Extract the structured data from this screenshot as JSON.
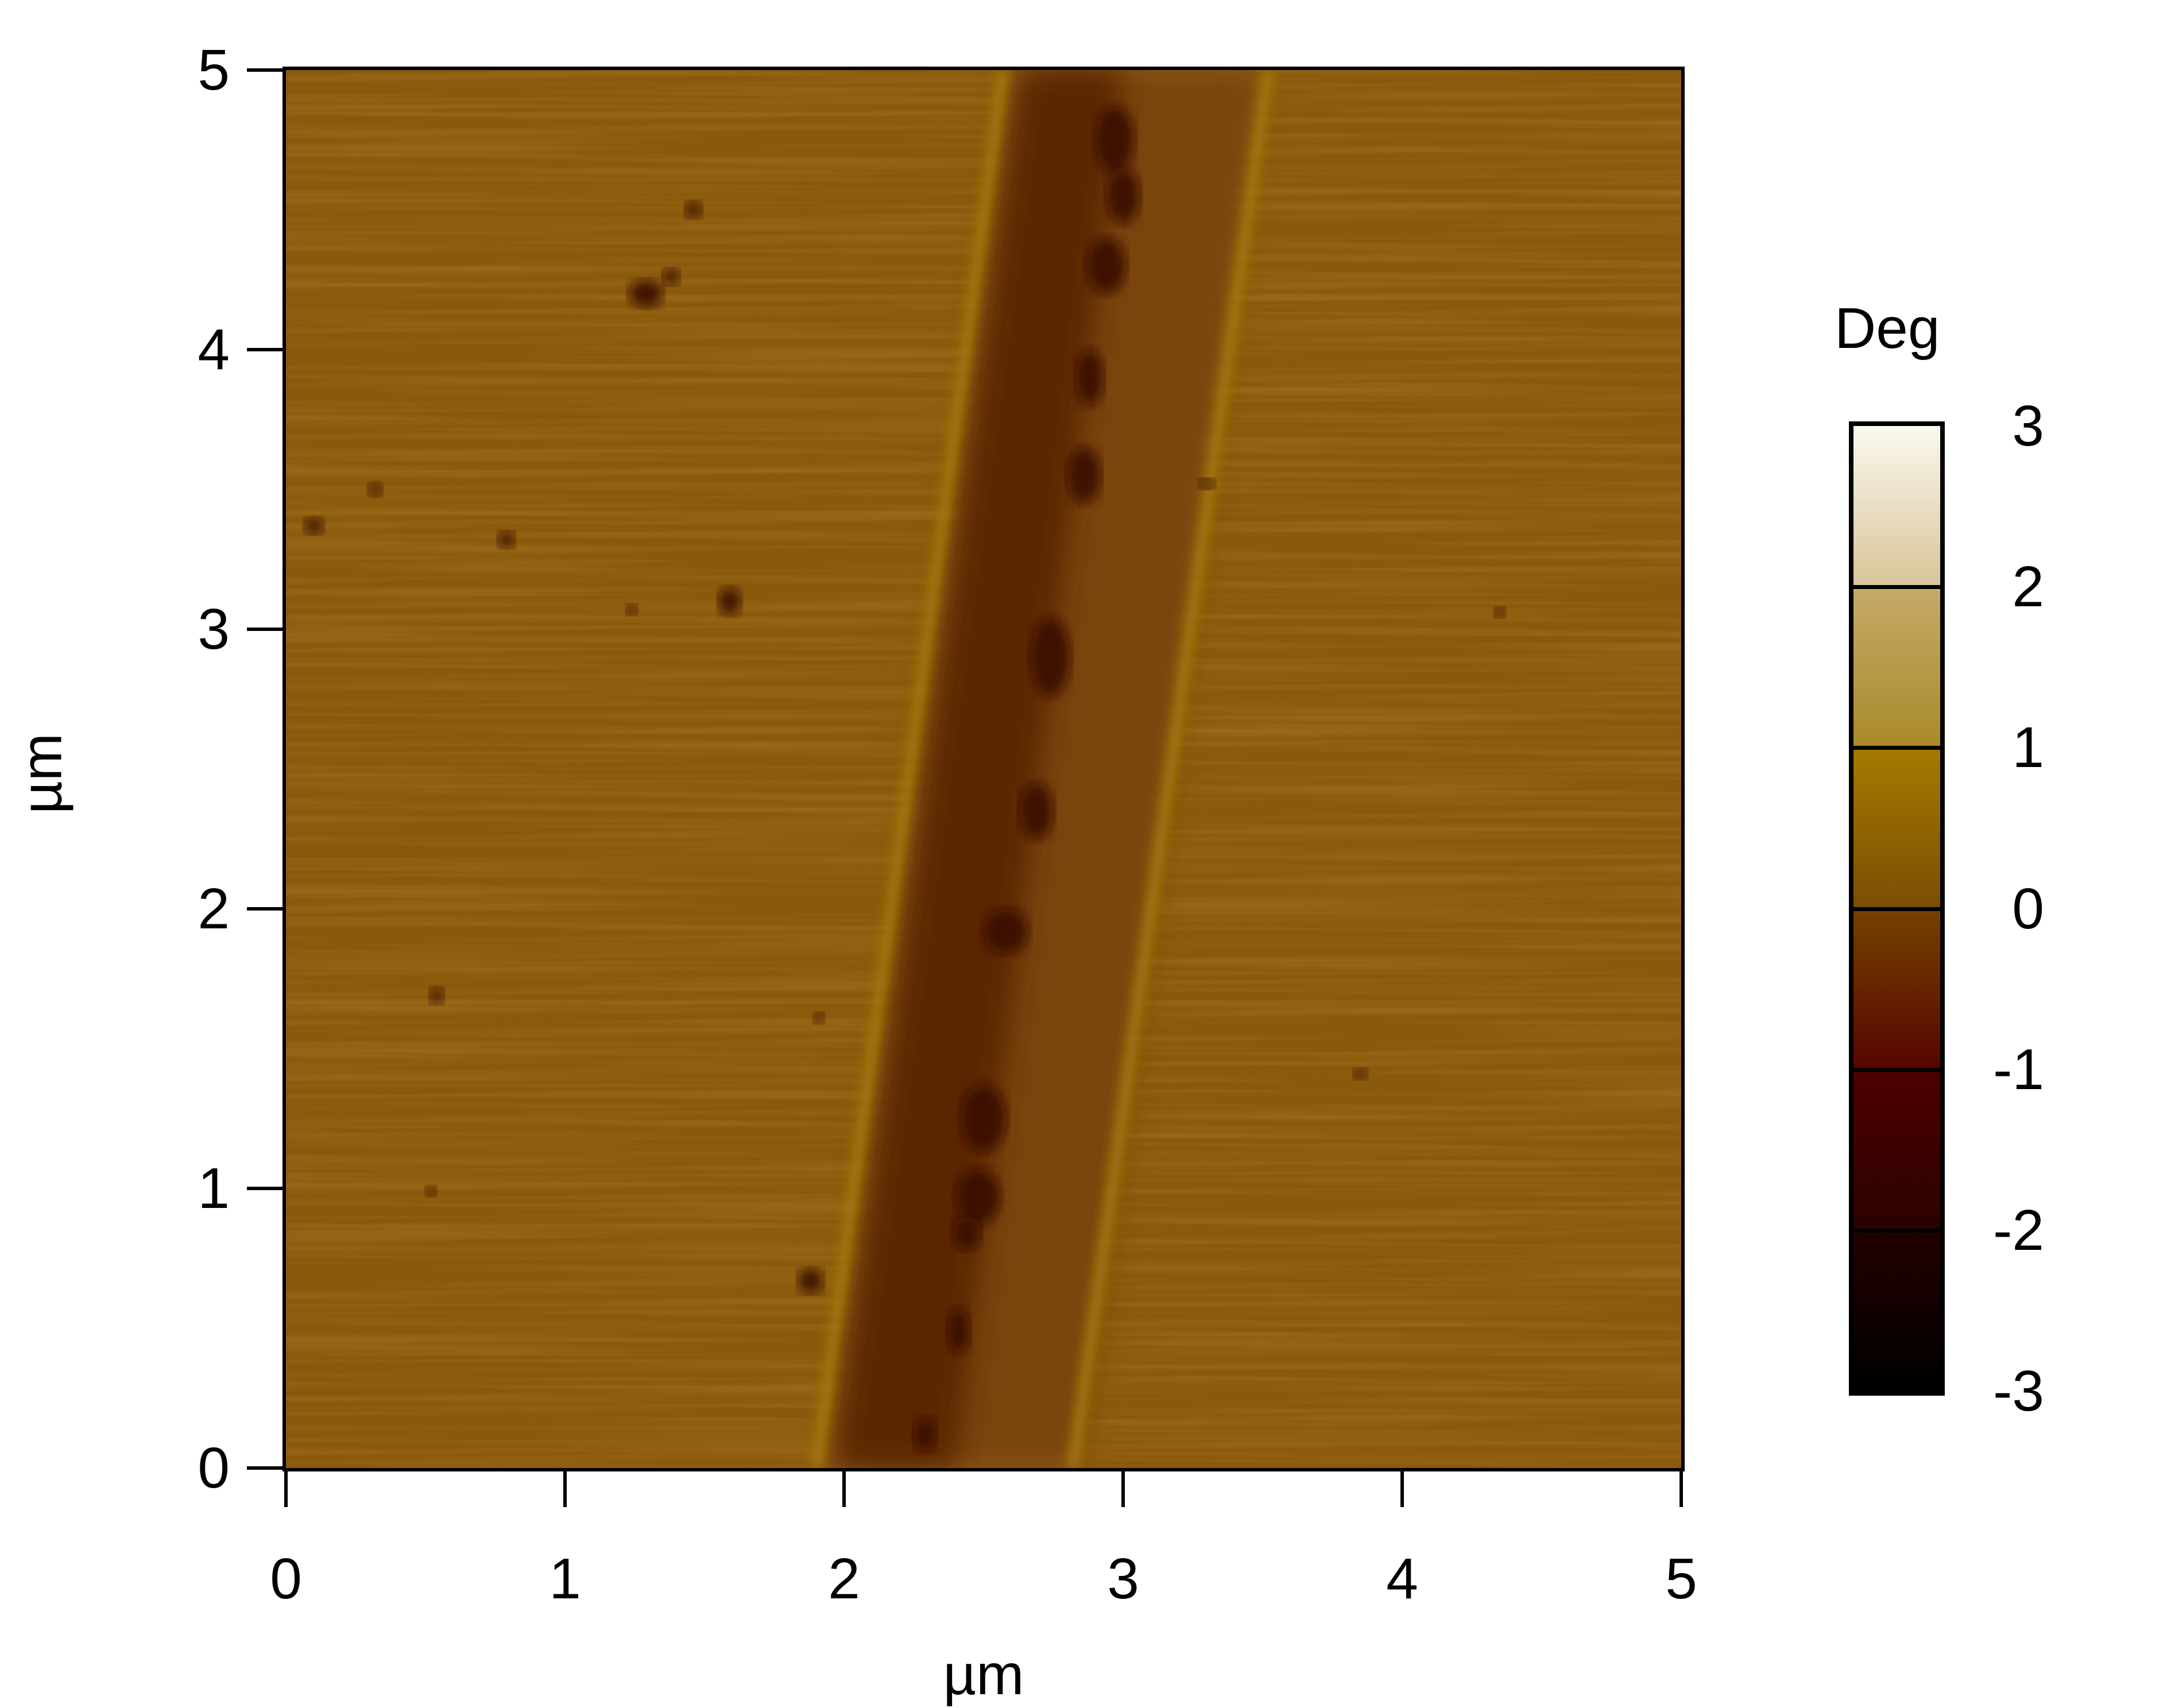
{
  "chart_data": {
    "type": "heatmap",
    "title": "",
    "xlabel": "µm",
    "ylabel": "µm",
    "xlim": [
      0,
      5
    ],
    "ylim": [
      0,
      5
    ],
    "xticks": [
      "0",
      "1",
      "2",
      "3",
      "4",
      "5"
    ],
    "yticks": [
      "0",
      "1",
      "2",
      "3",
      "4",
      "5"
    ],
    "grid": false,
    "colorbar": {
      "label": "Deg",
      "range": [
        -3,
        3
      ],
      "ticks": [
        "3",
        "2",
        "1",
        "0",
        "-1",
        "-2",
        "-3"
      ],
      "colors": [
        "#000000",
        "#4e0000",
        "#7a4e04",
        "#a47a00",
        "#c6a968",
        "#fbf8ef"
      ],
      "placement": "right"
    },
    "colors": {
      "background_phase": "#8a5a0c",
      "groove_dark": "#5a2604",
      "groove_edge": "#a8800e",
      "defects": "#3a0800"
    }
  }
}
